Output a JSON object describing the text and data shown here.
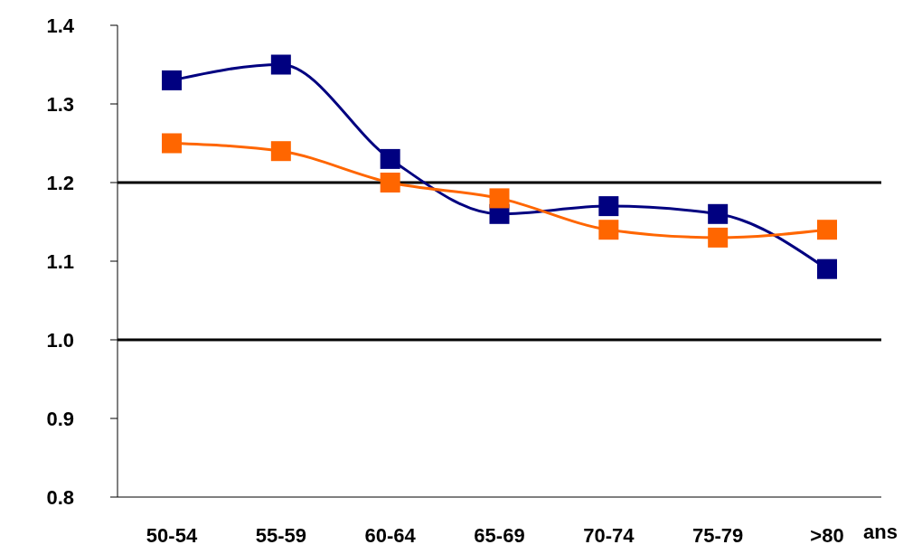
{
  "chart_data": {
    "type": "line",
    "xlabel": "ans",
    "categories": [
      "50-54",
      "55-59",
      "60-64",
      "65-69",
      "70-74",
      "75-79",
      ">80"
    ],
    "series": [
      {
        "color": "#000080",
        "values": [
          1.33,
          1.35,
          1.23,
          1.16,
          1.17,
          1.16,
          1.09
        ]
      },
      {
        "color": "#ff6600",
        "values": [
          1.25,
          1.24,
          1.2,
          1.18,
          1.14,
          1.13,
          1.14
        ]
      }
    ],
    "ylim": [
      0.8,
      1.4
    ],
    "yticks": [
      0.8,
      0.9,
      {
        "value": 1.0,
        "label": "1.0"
      },
      1.1,
      1.2,
      1.3,
      1.4
    ],
    "grid": false,
    "legend": false,
    "marker": "square",
    "line_style": "solid",
    "ref_lines": [
      {
        "axis": "y",
        "value": 1.2,
        "color": "#000000"
      },
      {
        "axis": "y",
        "value": 1.0,
        "color": "#000000"
      }
    ]
  }
}
